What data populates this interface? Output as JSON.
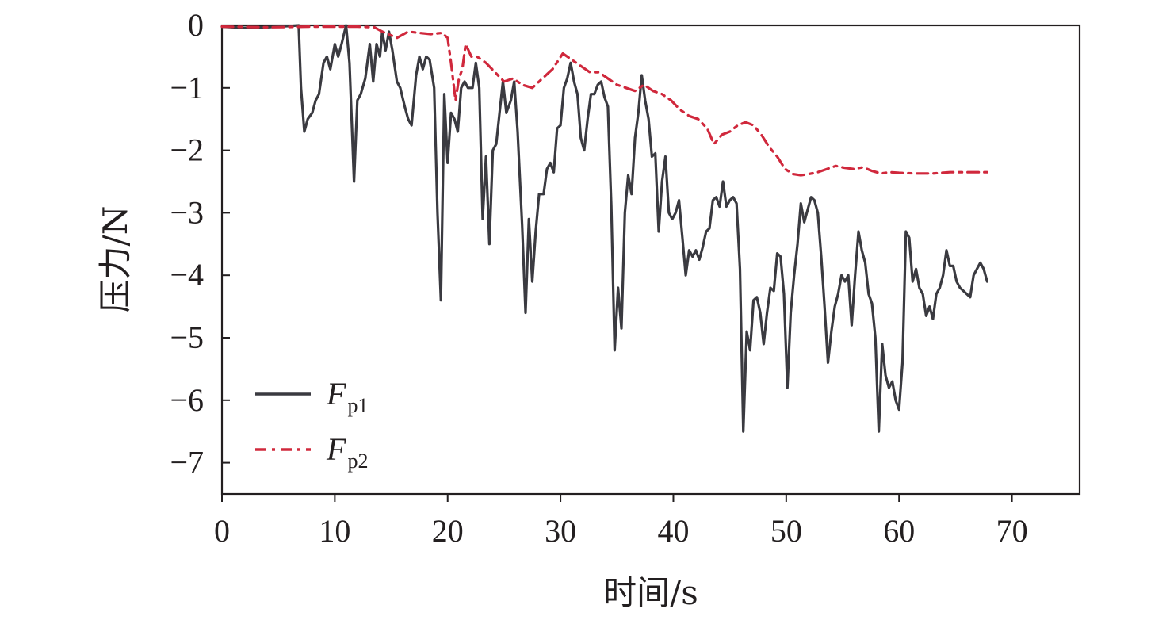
{
  "colors": {
    "axis": "#231f20",
    "series1": "#3a3a40",
    "series2": "#d0283c"
  },
  "chart_data": {
    "type": "line",
    "xlabel": "时间/s",
    "ylabel": "压力/N",
    "xlim": [
      0,
      76
    ],
    "ylim": [
      -7.5,
      0
    ],
    "xticks": [
      0,
      10,
      20,
      30,
      40,
      50,
      60,
      70
    ],
    "yticks": [
      0,
      -1,
      -2,
      -3,
      -4,
      -5,
      -6,
      -7
    ],
    "x_tick_labels": [
      "0",
      "10",
      "20",
      "30",
      "40",
      "50",
      "60",
      "70"
    ],
    "y_tick_labels": [
      "0",
      "−1",
      "−2",
      "−3",
      "−4",
      "−5",
      "−6",
      "−7"
    ],
    "grid": false,
    "legend_position": "bottom-left",
    "series": [
      {
        "name": "F",
        "subscript": "p1",
        "style": "solid",
        "points": [
          [
            0,
            -0.02
          ],
          [
            2,
            -0.04
          ],
          [
            4,
            -0.03
          ],
          [
            6,
            -0.01
          ],
          [
            6.8,
            0
          ],
          [
            7,
            -1.0
          ],
          [
            7.3,
            -1.7
          ],
          [
            7.6,
            -1.5
          ],
          [
            8,
            -1.4
          ],
          [
            8.3,
            -1.2
          ],
          [
            8.6,
            -1.1
          ],
          [
            9,
            -0.6
          ],
          [
            9.3,
            -0.5
          ],
          [
            9.6,
            -0.7
          ],
          [
            10,
            -0.3
          ],
          [
            10.3,
            -0.5
          ],
          [
            10.6,
            -0.3
          ],
          [
            11,
            0
          ],
          [
            11.3,
            -0.6
          ],
          [
            11.7,
            -2.5
          ],
          [
            12,
            -1.2
          ],
          [
            12.3,
            -1.1
          ],
          [
            12.7,
            -0.85
          ],
          [
            13.1,
            -0.3
          ],
          [
            13.4,
            -0.9
          ],
          [
            13.7,
            -0.3
          ],
          [
            14,
            -0.5
          ],
          [
            14.2,
            -0.1
          ],
          [
            14.5,
            -0.4
          ],
          [
            14.8,
            -0.1
          ],
          [
            15.1,
            -0.4
          ],
          [
            15.5,
            -0.9
          ],
          [
            15.8,
            -1.0
          ],
          [
            16.2,
            -1.3
          ],
          [
            16.5,
            -1.5
          ],
          [
            16.8,
            -1.6
          ],
          [
            17.2,
            -0.8
          ],
          [
            17.5,
            -0.5
          ],
          [
            17.8,
            -0.7
          ],
          [
            18.1,
            -0.5
          ],
          [
            18.4,
            -0.55
          ],
          [
            18.8,
            -1.0
          ],
          [
            19.1,
            -3.0
          ],
          [
            19.4,
            -4.4
          ],
          [
            19.7,
            -1.1
          ],
          [
            20,
            -2.2
          ],
          [
            20.3,
            -1.4
          ],
          [
            20.6,
            -1.5
          ],
          [
            20.9,
            -1.7
          ],
          [
            21.2,
            -1.0
          ],
          [
            21.5,
            -0.9
          ],
          [
            21.8,
            -1.0
          ],
          [
            22.2,
            -1.0
          ],
          [
            22.5,
            -0.6
          ],
          [
            22.8,
            -1.0
          ],
          [
            23.1,
            -3.1
          ],
          [
            23.4,
            -2.1
          ],
          [
            23.7,
            -3.5
          ],
          [
            24,
            -2.0
          ],
          [
            24.3,
            -1.9
          ],
          [
            24.6,
            -1.4
          ],
          [
            24.9,
            -0.9
          ],
          [
            25.2,
            -1.4
          ],
          [
            25.6,
            -1.2
          ],
          [
            25.9,
            -0.9
          ],
          [
            26.2,
            -1.7
          ],
          [
            26.6,
            -3.2
          ],
          [
            26.9,
            -4.6
          ],
          [
            27.2,
            -3.1
          ],
          [
            27.5,
            -4.1
          ],
          [
            27.8,
            -3.3
          ],
          [
            28.1,
            -2.7
          ],
          [
            28.5,
            -2.7
          ],
          [
            28.8,
            -2.3
          ],
          [
            29.1,
            -2.2
          ],
          [
            29.4,
            -2.35
          ],
          [
            29.7,
            -1.65
          ],
          [
            30,
            -1.6
          ],
          [
            30.3,
            -1.0
          ],
          [
            30.6,
            -0.85
          ],
          [
            30.9,
            -0.6
          ],
          [
            31.2,
            -0.9
          ],
          [
            31.5,
            -1.1
          ],
          [
            31.8,
            -1.8
          ],
          [
            32.1,
            -2.0
          ],
          [
            32.4,
            -1.5
          ],
          [
            32.7,
            -1.1
          ],
          [
            33,
            -1.1
          ],
          [
            33.3,
            -0.95
          ],
          [
            33.6,
            -0.9
          ],
          [
            33.9,
            -1.15
          ],
          [
            34.2,
            -1.3
          ],
          [
            34.5,
            -2.9
          ],
          [
            34.8,
            -5.2
          ],
          [
            35.1,
            -4.2
          ],
          [
            35.4,
            -4.85
          ],
          [
            35.7,
            -3.0
          ],
          [
            36,
            -2.4
          ],
          [
            36.3,
            -2.7
          ],
          [
            36.6,
            -1.8
          ],
          [
            36.9,
            -1.4
          ],
          [
            37.2,
            -0.8
          ],
          [
            37.5,
            -1.2
          ],
          [
            37.8,
            -1.5
          ],
          [
            38.1,
            -2.1
          ],
          [
            38.4,
            -2.05
          ],
          [
            38.7,
            -3.3
          ],
          [
            39,
            -2.5
          ],
          [
            39.3,
            -2.1
          ],
          [
            39.6,
            -3.0
          ],
          [
            39.9,
            -3.1
          ],
          [
            40.2,
            -3.0
          ],
          [
            40.5,
            -2.8
          ],
          [
            40.8,
            -3.4
          ],
          [
            41.1,
            -4.0
          ],
          [
            41.4,
            -3.6
          ],
          [
            41.7,
            -3.7
          ],
          [
            42,
            -3.6
          ],
          [
            42.3,
            -3.75
          ],
          [
            42.6,
            -3.55
          ],
          [
            42.9,
            -3.3
          ],
          [
            43.2,
            -3.25
          ],
          [
            43.5,
            -2.8
          ],
          [
            43.8,
            -2.75
          ],
          [
            44.1,
            -2.9
          ],
          [
            44.4,
            -2.5
          ],
          [
            44.7,
            -2.9
          ],
          [
            45,
            -2.8
          ],
          [
            45.3,
            -2.75
          ],
          [
            45.6,
            -2.85
          ],
          [
            45.9,
            -3.9
          ],
          [
            46.2,
            -6.5
          ],
          [
            46.5,
            -4.9
          ],
          [
            46.8,
            -5.2
          ],
          [
            47.1,
            -4.4
          ],
          [
            47.4,
            -4.35
          ],
          [
            47.7,
            -4.6
          ],
          [
            48,
            -5.1
          ],
          [
            48.3,
            -4.6
          ],
          [
            48.6,
            -4.2
          ],
          [
            48.9,
            -4.25
          ],
          [
            49.2,
            -3.65
          ],
          [
            49.5,
            -3.7
          ],
          [
            49.8,
            -4.3
          ],
          [
            50.1,
            -5.8
          ],
          [
            50.4,
            -4.6
          ],
          [
            50.7,
            -4.0
          ],
          [
            51,
            -3.5
          ],
          [
            51.3,
            -2.85
          ],
          [
            51.6,
            -3.15
          ],
          [
            51.9,
            -2.95
          ],
          [
            52.2,
            -2.75
          ],
          [
            52.5,
            -2.8
          ],
          [
            52.8,
            -3.0
          ],
          [
            53.1,
            -3.7
          ],
          [
            53.4,
            -4.5
          ],
          [
            53.7,
            -5.4
          ],
          [
            54,
            -4.9
          ],
          [
            54.3,
            -4.5
          ],
          [
            54.6,
            -4.3
          ],
          [
            54.9,
            -4.0
          ],
          [
            55.2,
            -4.1
          ],
          [
            55.5,
            -4.0
          ],
          [
            55.8,
            -4.8
          ],
          [
            56.1,
            -4.0
          ],
          [
            56.4,
            -3.3
          ],
          [
            56.7,
            -3.6
          ],
          [
            57,
            -3.8
          ],
          [
            57.3,
            -4.3
          ],
          [
            57.6,
            -4.45
          ],
          [
            57.9,
            -5.0
          ],
          [
            58.2,
            -6.5
          ],
          [
            58.5,
            -5.1
          ],
          [
            58.8,
            -5.6
          ],
          [
            59.1,
            -5.8
          ],
          [
            59.4,
            -5.7
          ],
          [
            59.7,
            -6.0
          ],
          [
            60,
            -6.15
          ],
          [
            60.3,
            -5.4
          ],
          [
            60.6,
            -3.3
          ],
          [
            60.9,
            -3.4
          ],
          [
            61.2,
            -4.1
          ],
          [
            61.5,
            -3.9
          ],
          [
            61.8,
            -4.2
          ],
          [
            62.1,
            -4.3
          ],
          [
            62.4,
            -4.65
          ],
          [
            62.7,
            -4.5
          ],
          [
            63,
            -4.7
          ],
          [
            63.3,
            -4.3
          ],
          [
            63.6,
            -4.2
          ],
          [
            63.9,
            -4.0
          ],
          [
            64.2,
            -3.6
          ],
          [
            64.5,
            -3.85
          ],
          [
            64.8,
            -3.85
          ],
          [
            65.1,
            -4.1
          ],
          [
            65.4,
            -4.2
          ],
          [
            65.7,
            -4.25
          ],
          [
            66,
            -4.3
          ],
          [
            66.3,
            -4.35
          ],
          [
            66.6,
            -4.0
          ],
          [
            66.9,
            -3.9
          ],
          [
            67.2,
            -3.8
          ],
          [
            67.5,
            -3.9
          ],
          [
            67.8,
            -4.1
          ]
        ]
      },
      {
        "name": "F",
        "subscript": "p2",
        "style": "dashdot",
        "points": [
          [
            0,
            -0.02
          ],
          [
            4,
            -0.03
          ],
          [
            8,
            -0.02
          ],
          [
            12,
            -0.02
          ],
          [
            13.5,
            -0.03
          ],
          [
            14.2,
            -0.1
          ],
          [
            15.5,
            -0.2
          ],
          [
            16.5,
            -0.1
          ],
          [
            17.5,
            -0.12
          ],
          [
            18.5,
            -0.14
          ],
          [
            19.5,
            -0.12
          ],
          [
            20,
            -0.2
          ],
          [
            20.3,
            -0.6
          ],
          [
            20.7,
            -1.2
          ],
          [
            21,
            -0.85
          ],
          [
            21.3,
            -0.7
          ],
          [
            21.6,
            -0.3
          ],
          [
            22.1,
            -0.5
          ],
          [
            22.6,
            -0.5
          ],
          [
            23.4,
            -0.6
          ],
          [
            24.2,
            -0.75
          ],
          [
            25,
            -0.9
          ],
          [
            25.8,
            -0.85
          ],
          [
            26.6,
            -0.95
          ],
          [
            27.5,
            -1.0
          ],
          [
            28.4,
            -0.85
          ],
          [
            29.3,
            -0.7
          ],
          [
            30.2,
            -0.45
          ],
          [
            31,
            -0.55
          ],
          [
            31.8,
            -0.65
          ],
          [
            32.6,
            -0.75
          ],
          [
            33.4,
            -0.75
          ],
          [
            34.2,
            -0.85
          ],
          [
            35,
            -0.95
          ],
          [
            35.8,
            -1.0
          ],
          [
            36.6,
            -1.05
          ],
          [
            37.4,
            -0.95
          ],
          [
            38.2,
            -1.05
          ],
          [
            39,
            -1.1
          ],
          [
            39.8,
            -1.2
          ],
          [
            40.6,
            -1.35
          ],
          [
            41.4,
            -1.45
          ],
          [
            42.2,
            -1.5
          ],
          [
            43,
            -1.65
          ],
          [
            43.6,
            -1.9
          ],
          [
            44.3,
            -1.75
          ],
          [
            45,
            -1.7
          ],
          [
            45.7,
            -1.6
          ],
          [
            46.4,
            -1.55
          ],
          [
            47.1,
            -1.6
          ],
          [
            47.8,
            -1.75
          ],
          [
            48.5,
            -1.95
          ],
          [
            49.2,
            -2.1
          ],
          [
            49.9,
            -2.3
          ],
          [
            50.6,
            -2.38
          ],
          [
            51.3,
            -2.4
          ],
          [
            52,
            -2.38
          ],
          [
            52.8,
            -2.35
          ],
          [
            53.6,
            -2.3
          ],
          [
            54.4,
            -2.25
          ],
          [
            55.2,
            -2.28
          ],
          [
            56,
            -2.3
          ],
          [
            56.8,
            -2.27
          ],
          [
            57.6,
            -2.33
          ],
          [
            58.4,
            -2.37
          ],
          [
            59.2,
            -2.35
          ],
          [
            60,
            -2.36
          ],
          [
            61.5,
            -2.37
          ],
          [
            63,
            -2.37
          ],
          [
            64.5,
            -2.35
          ],
          [
            66,
            -2.35
          ],
          [
            67.2,
            -2.35
          ],
          [
            67.8,
            -2.35
          ]
        ]
      }
    ]
  }
}
